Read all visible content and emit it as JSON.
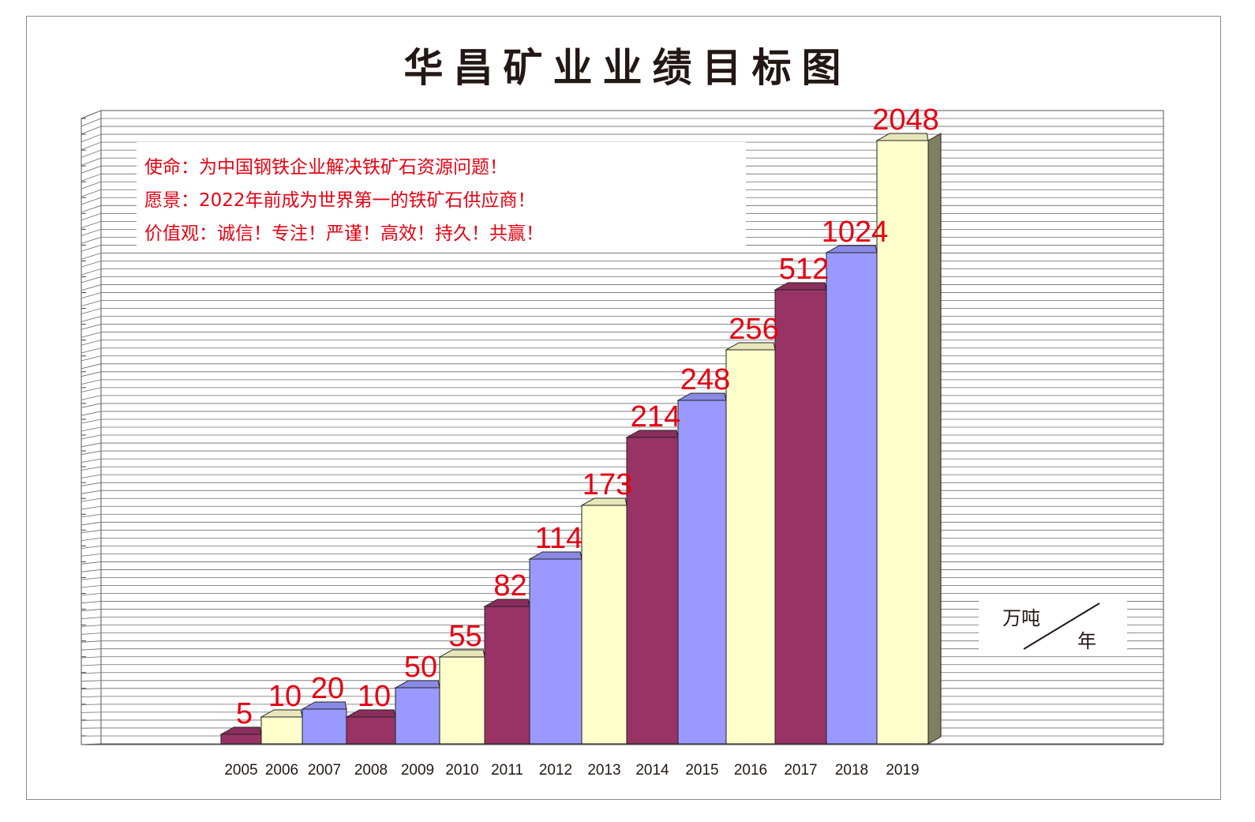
{
  "title": "华昌矿业业绩目标图",
  "mission_lines": [
    "使命：为中国钢铁企业解决铁矿石资源问题！",
    "愿景：2022年前成为世界第一的铁矿石供应商！",
    "价值观：诚信！专注！严谨！高效！持久！共赢！"
  ],
  "unit": {
    "top": "万吨",
    "bottom": "年"
  },
  "colors": {
    "maroon": "#993366",
    "blue": "#9999ff",
    "cream": "#ffffcc",
    "label_red": "#e60012"
  },
  "chart_data": {
    "type": "bar",
    "title": "华昌矿业业绩目标图",
    "xlabel": "",
    "ylabel": "",
    "unit": "万吨/年",
    "grid": true,
    "categories": [
      "2005",
      "2006",
      "2007",
      "2008",
      "2009",
      "2010",
      "2011",
      "2012",
      "2013",
      "2014",
      "2015",
      "2016",
      "2017",
      "2018",
      "2019"
    ],
    "values": [
      5,
      10,
      20,
      10,
      50,
      55,
      82,
      114,
      173,
      214,
      248,
      256,
      512,
      1024,
      2048
    ],
    "bar_colors": [
      "maroon",
      "cream",
      "blue",
      "maroon",
      "blue",
      "cream",
      "maroon",
      "blue",
      "cream",
      "maroon",
      "blue",
      "cream",
      "maroon",
      "blue",
      "cream"
    ]
  }
}
